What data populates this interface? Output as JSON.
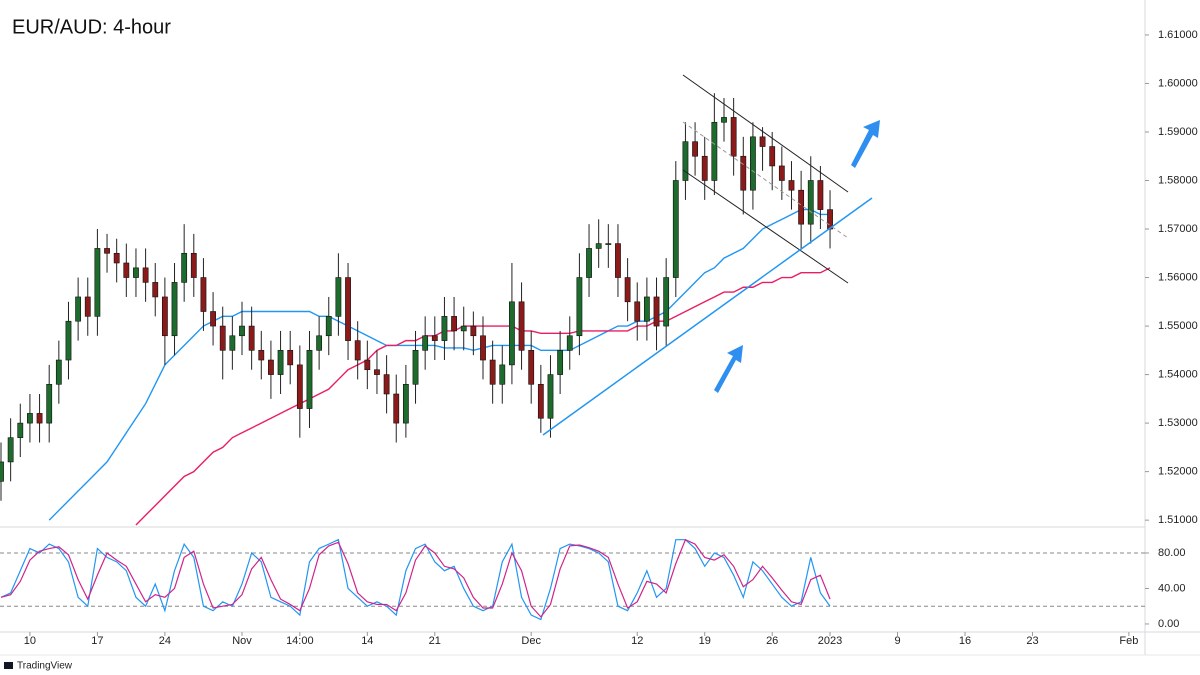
{
  "chart_data": [
    {
      "type": "candlestick",
      "title": "EUR/AUD: 4-hour",
      "categories": [
        null,
        null,
        null,
        "10",
        null,
        null,
        null,
        null,
        null,
        null,
        "17",
        null,
        null,
        null,
        null,
        null,
        null,
        "24",
        null,
        null,
        null,
        null,
        null,
        null,
        null,
        "Nov",
        null,
        null,
        null,
        null,
        null,
        "14:00",
        null,
        null,
        null,
        null,
        null,
        null,
        "14",
        null,
        null,
        null,
        null,
        null,
        null,
        "21",
        null,
        null,
        null,
        null,
        null,
        null,
        null,
        null,
        null,
        "Dec",
        null,
        null,
        null,
        null,
        null,
        null,
        null,
        null,
        null,
        null,
        "12",
        null,
        null,
        null,
        null,
        null,
        null,
        "19",
        null,
        null,
        null,
        null,
        null,
        null,
        "26",
        null,
        null,
        null,
        null,
        null,
        "2023",
        null,
        null,
        null,
        null,
        null,
        null,
        "9",
        null,
        null,
        null,
        null,
        null,
        null,
        "16",
        null,
        null,
        null,
        null,
        null,
        null,
        "23",
        null,
        null,
        null,
        null,
        null,
        null,
        null,
        null,
        null,
        "Feb",
        null
      ],
      "open": [
        1.518,
        1.522,
        1.527,
        1.53,
        1.532,
        1.53,
        1.538,
        1.543,
        1.551,
        1.556,
        1.552,
        1.566,
        1.565,
        1.563,
        1.56,
        1.562,
        1.559,
        1.556,
        1.548,
        1.559,
        1.565,
        1.56,
        1.553,
        1.55,
        1.545,
        1.548,
        1.55,
        1.545,
        1.543,
        1.54,
        1.545,
        1.542,
        1.533,
        1.545,
        1.548,
        1.552,
        1.56,
        1.547,
        1.543,
        1.541,
        1.54,
        1.536,
        1.53,
        1.538,
        1.545,
        1.548,
        1.547,
        1.552,
        1.549,
        1.55,
        1.548,
        1.543,
        1.538,
        1.542,
        1.555,
        1.545,
        1.538,
        1.531,
        1.54,
        1.545,
        1.548,
        1.56,
        1.566,
        1.567,
        1.567,
        1.56,
        1.555,
        1.551,
        1.556,
        1.55,
        1.56,
        1.58,
        1.588,
        1.585,
        1.58,
        1.592,
        1.593,
        1.585,
        1.578,
        1.589,
        1.587,
        1.583,
        1.58,
        1.578,
        1.571,
        1.58,
        1.574,
        null,
        null,
        null,
        null,
        null,
        null,
        null,
        null,
        null,
        null,
        null,
        null,
        null,
        null,
        null,
        null,
        null,
        null,
        null,
        null,
        null,
        null,
        null,
        null,
        null,
        null,
        null,
        null,
        null,
        null,
        null,
        null
      ],
      "high": [
        1.526,
        1.531,
        1.534,
        1.536,
        1.536,
        1.542,
        1.547,
        1.555,
        1.56,
        1.56,
        1.57,
        1.569,
        1.568,
        1.567,
        1.566,
        1.566,
        1.563,
        1.56,
        1.563,
        1.571,
        1.569,
        1.564,
        1.557,
        1.554,
        1.552,
        1.555,
        1.554,
        1.549,
        1.547,
        1.549,
        1.549,
        1.546,
        1.549,
        1.552,
        1.556,
        1.565,
        1.563,
        1.551,
        1.547,
        1.545,
        1.544,
        1.54,
        1.542,
        1.549,
        1.552,
        1.552,
        1.556,
        1.556,
        1.554,
        1.553,
        1.552,
        1.547,
        1.546,
        1.563,
        1.559,
        1.549,
        1.542,
        1.544,
        1.549,
        1.552,
        1.565,
        1.571,
        1.572,
        1.571,
        1.571,
        1.564,
        1.559,
        1.56,
        1.56,
        1.564,
        1.584,
        1.592,
        1.592,
        1.589,
        1.598,
        1.597,
        1.597,
        1.589,
        1.592,
        1.591,
        1.59,
        1.587,
        1.584,
        1.582,
        1.585,
        1.583,
        1.578,
        null,
        null,
        null,
        null,
        null,
        null,
        null,
        null,
        null,
        null,
        null,
        null,
        null,
        null,
        null,
        null,
        null,
        null,
        null,
        null,
        null,
        null,
        null,
        null,
        null,
        null,
        null,
        null,
        null,
        null,
        null,
        null
      ],
      "low": [
        1.514,
        1.518,
        1.523,
        1.526,
        1.526,
        1.526,
        1.534,
        1.539,
        1.547,
        1.548,
        1.548,
        1.561,
        1.559,
        1.556,
        1.556,
        1.555,
        1.552,
        1.542,
        1.544,
        1.555,
        1.556,
        1.549,
        1.546,
        1.539,
        1.541,
        1.544,
        1.541,
        1.539,
        1.535,
        1.536,
        1.538,
        1.527,
        1.529,
        1.541,
        1.544,
        1.548,
        1.543,
        1.539,
        1.537,
        1.536,
        1.532,
        1.526,
        1.527,
        1.534,
        1.541,
        1.543,
        1.543,
        1.545,
        1.545,
        1.544,
        1.539,
        1.534,
        1.534,
        1.538,
        1.541,
        1.534,
        1.528,
        1.527,
        1.536,
        1.541,
        1.544,
        1.556,
        1.562,
        1.562,
        1.556,
        1.551,
        1.547,
        1.547,
        1.545,
        1.546,
        1.556,
        1.576,
        1.581,
        1.576,
        1.577,
        1.588,
        1.581,
        1.573,
        1.574,
        1.582,
        1.578,
        1.576,
        1.574,
        1.566,
        1.567,
        1.57,
        1.566,
        null,
        null,
        null,
        null,
        null,
        null,
        null,
        null,
        null,
        null,
        null,
        null,
        null,
        null,
        null,
        null,
        null,
        null,
        null,
        null,
        null,
        null,
        null,
        null,
        null,
        null,
        null,
        null,
        null,
        null,
        null,
        null
      ],
      "close": [
        1.522,
        1.527,
        1.53,
        1.532,
        1.53,
        1.538,
        1.543,
        1.551,
        1.556,
        1.552,
        1.566,
        1.565,
        1.563,
        1.56,
        1.562,
        1.559,
        1.556,
        1.548,
        1.559,
        1.565,
        1.56,
        1.553,
        1.55,
        1.545,
        1.548,
        1.55,
        1.545,
        1.543,
        1.54,
        1.545,
        1.542,
        1.533,
        1.545,
        1.548,
        1.552,
        1.56,
        1.547,
        1.543,
        1.541,
        1.54,
        1.536,
        1.53,
        1.538,
        1.545,
        1.548,
        1.547,
        1.552,
        1.549,
        1.55,
        1.548,
        1.543,
        1.538,
        1.542,
        1.555,
        1.545,
        1.538,
        1.531,
        1.54,
        1.545,
        1.548,
        1.56,
        1.566,
        1.567,
        1.567,
        1.56,
        1.555,
        1.551,
        1.556,
        1.55,
        1.56,
        1.58,
        1.588,
        1.585,
        1.58,
        1.592,
        1.593,
        1.585,
        1.578,
        1.589,
        1.587,
        1.583,
        1.58,
        1.578,
        1.571,
        1.58,
        1.574,
        1.57,
        null,
        null,
        null,
        null,
        null,
        null,
        null,
        null,
        null,
        null,
        null,
        null,
        null,
        null,
        null,
        null,
        null,
        null,
        null,
        null,
        null,
        null,
        null,
        null,
        null,
        null,
        null,
        null,
        null,
        null,
        null,
        null
      ],
      "up_color": "#1e6b2e",
      "down_color": "#8b1a1a",
      "wick_color": "#222222",
      "series": [
        {
          "color": "#2196f3",
          "values": [
            null,
            null,
            null,
            null,
            null,
            1.51,
            1.512,
            1.514,
            1.516,
            1.518,
            1.52,
            1.522,
            1.525,
            1.528,
            1.531,
            1.534,
            1.538,
            1.542,
            1.544,
            1.546,
            1.548,
            1.55,
            1.551,
            1.552,
            1.552,
            1.553,
            1.553,
            1.553,
            1.553,
            1.553,
            1.553,
            1.553,
            1.553,
            1.552,
            1.552,
            1.551,
            1.55,
            1.549,
            1.548,
            1.547,
            1.546,
            1.546,
            1.546,
            1.546,
            1.546,
            1.546,
            1.5455,
            1.5455,
            1.5455,
            1.545,
            1.5455,
            1.546,
            1.546,
            1.546,
            1.546,
            1.546,
            1.545,
            1.545,
            1.545,
            1.545,
            1.546,
            1.547,
            1.548,
            1.549,
            1.55,
            1.55,
            1.551,
            1.551,
            1.552,
            1.553,
            1.555,
            1.557,
            1.559,
            1.561,
            1.562,
            1.564,
            1.565,
            1.566,
            1.568,
            1.57,
            1.571,
            1.572,
            1.573,
            1.574,
            1.574,
            1.573,
            1.573,
            null,
            null,
            null,
            null,
            null,
            null,
            null,
            null,
            null,
            null,
            null,
            null,
            null,
            null,
            null,
            null,
            null,
            null,
            null,
            null,
            null,
            null,
            null,
            null,
            null,
            null,
            null,
            null,
            null,
            null,
            null,
            null
          ]
        },
        {
          "color": "#e91e63",
          "values": [
            null,
            null,
            null,
            null,
            null,
            null,
            null,
            null,
            null,
            null,
            null,
            null,
            null,
            null,
            1.509,
            1.511,
            1.513,
            1.515,
            1.517,
            1.519,
            1.52,
            1.522,
            1.524,
            1.525,
            1.527,
            1.528,
            1.529,
            1.53,
            1.531,
            1.532,
            1.533,
            1.534,
            1.535,
            1.536,
            1.537,
            1.539,
            1.541,
            1.542,
            1.543,
            1.545,
            1.546,
            1.546,
            1.547,
            1.547,
            1.548,
            1.548,
            1.549,
            1.549,
            1.55,
            1.55,
            1.55,
            1.55,
            1.55,
            1.55,
            1.549,
            1.549,
            1.5485,
            1.5485,
            1.5485,
            1.5485,
            1.549,
            1.549,
            1.549,
            1.549,
            1.549,
            1.549,
            1.55,
            1.55,
            1.551,
            1.551,
            1.552,
            1.553,
            1.554,
            1.555,
            1.556,
            1.557,
            1.557,
            1.558,
            1.558,
            1.559,
            1.559,
            1.56,
            1.56,
            1.561,
            1.561,
            1.561,
            1.562,
            null,
            null,
            null,
            null,
            null,
            null,
            null,
            null,
            null,
            null,
            null,
            null,
            null,
            null,
            null,
            null,
            null,
            null,
            null,
            null,
            null,
            null,
            null,
            null,
            null,
            null,
            null,
            null,
            null,
            null,
            null,
            null
          ]
        }
      ],
      "ylim": [
        1.509,
        1.6172
      ],
      "yticks": [
        {
          "value": 1.51,
          "label": "1.51000"
        },
        {
          "value": 1.52,
          "label": "1.52000"
        },
        {
          "value": 1.53,
          "label": "1.53000"
        },
        {
          "value": 1.54,
          "label": "1.54000"
        },
        {
          "value": 1.55,
          "label": "1.55000"
        },
        {
          "value": 1.56,
          "label": "1.56000"
        },
        {
          "value": 1.57,
          "label": "1.57000"
        },
        {
          "value": 1.58,
          "label": "1.58000"
        },
        {
          "value": 1.59,
          "label": "1.59000"
        },
        {
          "value": 1.6,
          "label": "1.60000"
        },
        {
          "value": 1.61,
          "label": "1.61000"
        }
      ]
    },
    {
      "type": "line",
      "series": [
        {
          "color": "#2196f3",
          "values": [
            30,
            35,
            60,
            85,
            80,
            90,
            85,
            70,
            30,
            20,
            85,
            75,
            70,
            60,
            30,
            20,
            45,
            15,
            60,
            90,
            75,
            20,
            15,
            25,
            20,
            45,
            80,
            70,
            30,
            25,
            20,
            10,
            70,
            85,
            90,
            95,
            40,
            30,
            20,
            25,
            20,
            10,
            60,
            85,
            90,
            70,
            60,
            65,
            40,
            20,
            15,
            20,
            70,
            90,
            30,
            10,
            5,
            40,
            85,
            90,
            88,
            85,
            80,
            70,
            20,
            15,
            35,
            60,
            30,
            40,
            95,
            95,
            85,
            65,
            80,
            75,
            55,
            30,
            70,
            60,
            45,
            30,
            20,
            25,
            75,
            35,
            20,
            null,
            null,
            null,
            null,
            null,
            null,
            null,
            null,
            null,
            null,
            null,
            null,
            null,
            null,
            null,
            null,
            null,
            null,
            null,
            null,
            null,
            null,
            null,
            null,
            null,
            null,
            null,
            null,
            null,
            null,
            null,
            null
          ]
        },
        {
          "color": "#d0248a",
          "values": [
            30,
            33,
            48,
            72,
            82,
            85,
            87,
            78,
            50,
            28,
            55,
            80,
            72,
            65,
            45,
            25,
            33,
            30,
            40,
            75,
            82,
            45,
            18,
            20,
            22,
            33,
            62,
            75,
            50,
            28,
            22,
            15,
            40,
            78,
            88,
            92,
            68,
            35,
            25,
            22,
            22,
            15,
            35,
            72,
            88,
            80,
            65,
            62,
            52,
            30,
            18,
            18,
            45,
            80,
            60,
            20,
            8,
            22,
            62,
            88,
            89,
            86,
            82,
            75,
            45,
            18,
            25,
            48,
            45,
            35,
            68,
            95,
            90,
            75,
            72,
            78,
            65,
            42,
            50,
            65,
            52,
            38,
            25,
            22,
            50,
            55,
            28,
            null,
            null,
            null,
            null,
            null,
            null,
            null,
            null,
            null,
            null,
            null,
            null,
            null,
            null,
            null,
            null,
            null,
            null,
            null,
            null,
            null,
            null,
            null,
            null,
            null,
            null,
            null,
            null,
            null,
            null,
            null,
            null
          ]
        }
      ],
      "bands": [
        20,
        80
      ],
      "ylim": [
        -6.8,
        105.9
      ],
      "yticks": [
        {
          "value": 80,
          "label": "80.00"
        },
        {
          "value": 40,
          "label": "40.00"
        },
        {
          "value": 0,
          "label": "0.00"
        }
      ]
    }
  ],
  "footer": {
    "brand": "TradingView"
  }
}
